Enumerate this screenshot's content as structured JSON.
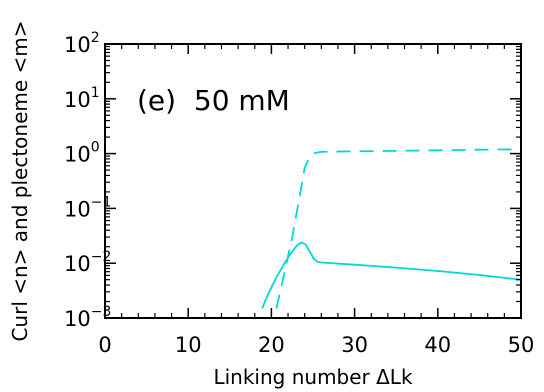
{
  "chart_data": {
    "type": "line",
    "annotation": "(e)  50 mM",
    "xlabel": "Linking number ΔLk",
    "ylabel": "Curl <n> and plectoneme <m>",
    "xlim": [
      0,
      50
    ],
    "ylim": [
      0.001,
      100
    ],
    "yscale": "log",
    "xticks": [
      0,
      10,
      20,
      30,
      40,
      50
    ],
    "xtick_labels": [
      "0",
      "10",
      "20",
      "30",
      "40",
      "50"
    ],
    "yticks": [
      0.001,
      0.01,
      0.1,
      1,
      10,
      100
    ],
    "ytick_labels": [
      {
        "base": "10",
        "exp": "−3"
      },
      {
        "base": "10",
        "exp": "−2"
      },
      {
        "base": "10",
        "exp": "−1"
      },
      {
        "base": "10",
        "exp": "0"
      },
      {
        "base": "10",
        "exp": "1"
      },
      {
        "base": "10",
        "exp": "2"
      }
    ],
    "series": [
      {
        "style": "solid",
        "color": "#00d8d8",
        "x": [
          18.9,
          19.5,
          20.5,
          21.5,
          22.3,
          23.0,
          23.6,
          24.1,
          24.6,
          25.1,
          25.6,
          26.0,
          30,
          35,
          40,
          45,
          50
        ],
        "y": [
          0.0015,
          0.0025,
          0.0052,
          0.0095,
          0.0148,
          0.0205,
          0.024,
          0.022,
          0.0165,
          0.012,
          0.0105,
          0.0103,
          0.0094,
          0.0083,
          0.0072,
          0.0061,
          0.005
        ]
      },
      {
        "style": "dashed",
        "color": "#00d8d8",
        "x": [
          20.6,
          21.5,
          22.5,
          23.3,
          24.0,
          24.6,
          25.2,
          26.0,
          30,
          35,
          40,
          45,
          50
        ],
        "y": [
          0.0015,
          0.006,
          0.03,
          0.14,
          0.55,
          0.9,
          1.02,
          1.08,
          1.1,
          1.12,
          1.15,
          1.18,
          1.2
        ]
      }
    ]
  }
}
